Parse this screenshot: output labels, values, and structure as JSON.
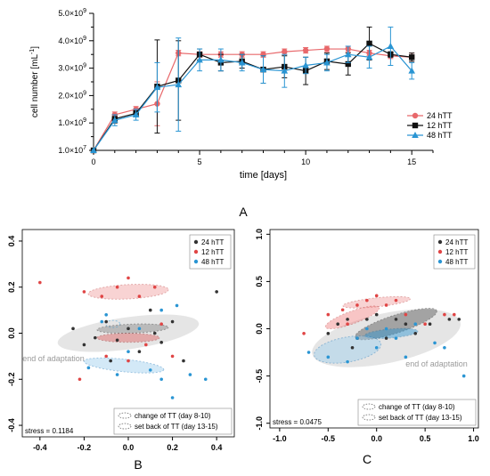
{
  "chart_data": [
    {
      "type": "line",
      "panel_label": "A",
      "xlabel": "time [days]",
      "ylabel": "cell number [mL",
      "ylabel_sup": "-1",
      "ylabel_end": "]",
      "xlim": [
        0,
        16
      ],
      "ylim": [
        0,
        5
      ],
      "xticks": [
        0,
        5,
        10,
        15
      ],
      "yticks": [
        {
          "v": 0,
          "m": "1.0×10",
          "e": "7"
        },
        {
          "v": 1,
          "m": "1.0×10",
          "e": "9"
        },
        {
          "v": 2,
          "m": "2.0×10",
          "e": "9"
        },
        {
          "v": 3,
          "m": "3.0×10",
          "e": "9"
        },
        {
          "v": 4,
          "m": "4.0×10",
          "e": "9"
        },
        {
          "v": 5,
          "m": "5.0×10",
          "e": "9"
        }
      ],
      "legend_position": "right",
      "series": [
        {
          "name": "24 hTT",
          "color": "#e8686b",
          "marker": "circle",
          "x": [
            0,
            1,
            2,
            3,
            4,
            5,
            6,
            7,
            8,
            9,
            10,
            11,
            12,
            13,
            14,
            15
          ],
          "y": [
            0.0,
            1.3,
            1.5,
            1.7,
            3.55,
            3.5,
            3.5,
            3.5,
            3.5,
            3.6,
            3.65,
            3.7,
            3.7,
            3.55,
            3.45,
            3.4
          ],
          "err": [
            0,
            0.1,
            0.1,
            0.8,
            0.1,
            0.1,
            0.1,
            0.1,
            0.1,
            0.1,
            0.1,
            0.1,
            0.1,
            0.1,
            0.1,
            0.15
          ]
        },
        {
          "name": "12 hTT",
          "color": "#111111",
          "marker": "square",
          "x": [
            0,
            1,
            2,
            3,
            4,
            5,
            6,
            7,
            8,
            9,
            10,
            11,
            12,
            13,
            14,
            15
          ],
          "y": [
            0.0,
            1.15,
            1.35,
            2.33,
            2.55,
            3.5,
            3.2,
            3.25,
            2.95,
            3.05,
            2.9,
            3.25,
            3.15,
            3.9,
            3.5,
            3.4
          ],
          "err": [
            0,
            0.15,
            0.1,
            1.7,
            1.45,
            0.2,
            0.3,
            0.25,
            0.5,
            0.4,
            0.5,
            0.3,
            0.4,
            0.6,
            0.1,
            0.15
          ]
        },
        {
          "name": "48 hTT",
          "color": "#2a95d3",
          "marker": "triangle",
          "x": [
            0,
            1,
            2,
            3,
            4,
            5,
            6,
            7,
            8,
            9,
            10,
            11,
            12,
            13,
            14,
            15
          ],
          "y": [
            0.0,
            1.1,
            1.3,
            2.3,
            2.4,
            3.3,
            3.3,
            3.2,
            2.95,
            2.9,
            3.1,
            3.2,
            3.5,
            3.4,
            3.8,
            2.9
          ],
          "err": [
            0,
            0.2,
            0.2,
            0.9,
            1.7,
            0.4,
            0.4,
            0.3,
            0.5,
            0.6,
            0.3,
            0.3,
            0.3,
            0.4,
            0.7,
            0.3
          ]
        }
      ]
    },
    {
      "type": "scatter",
      "panel_label": "B",
      "xlim": [
        -0.48,
        0.48
      ],
      "ylim": [
        -0.45,
        0.45
      ],
      "xticks": [
        "-0.4",
        "-0.2",
        "0.0",
        "0.2",
        "0.4"
      ],
      "xtick_values": [
        -0.4,
        -0.2,
        0,
        0.2,
        0.4
      ],
      "yticks": [
        "-0.4",
        "-0.2",
        "0.0",
        "0.2",
        "0.4"
      ],
      "ytick_values": [
        -0.4,
        -0.2,
        0,
        0.2,
        0.4
      ],
      "stress": "stress = 0.1184",
      "annotation": "end of adaptation",
      "legend": [
        "24 hTT",
        "12 hTT",
        "48 hTT"
      ],
      "ellipse_legend": [
        "change of TT (day 8-10)",
        "set back of TT (day 13-15)"
      ],
      "points": {
        "24 hTT": [
          [
            -0.25,
            0.02
          ],
          [
            -0.2,
            -0.05
          ],
          [
            -0.15,
            -0.02
          ],
          [
            -0.1,
            0.05
          ],
          [
            -0.05,
            -0.03
          ],
          [
            0.0,
            0.02
          ],
          [
            0.05,
            -0.08
          ],
          [
            0.1,
            0.1
          ],
          [
            0.15,
            -0.04
          ],
          [
            0.2,
            0.05
          ],
          [
            0.25,
            -0.12
          ],
          [
            0.4,
            0.18
          ],
          [
            -0.08,
            -0.12
          ],
          [
            0.12,
            0.0
          ]
        ],
        "12 hTT": [
          [
            -0.4,
            0.22
          ],
          [
            -0.2,
            0.18
          ],
          [
            -0.12,
            0.16
          ],
          [
            -0.05,
            0.2
          ],
          [
            0.0,
            0.24
          ],
          [
            0.05,
            0.16
          ],
          [
            0.12,
            0.2
          ],
          [
            -0.1,
            -0.1
          ],
          [
            0.0,
            -0.12
          ],
          [
            0.08,
            -0.05
          ],
          [
            0.15,
            0.04
          ],
          [
            0.2,
            -0.1
          ],
          [
            -0.22,
            -0.2
          ]
        ],
        "48 hTT": [
          [
            -0.18,
            -0.15
          ],
          [
            -0.12,
            0.05
          ],
          [
            -0.05,
            -0.18
          ],
          [
            0.0,
            -0.08
          ],
          [
            0.05,
            0.02
          ],
          [
            0.1,
            -0.16
          ],
          [
            0.15,
            -0.2
          ],
          [
            0.2,
            -0.28
          ],
          [
            0.22,
            0.12
          ],
          [
            0.28,
            -0.18
          ],
          [
            0.35,
            -0.2
          ],
          [
            -0.1,
            0.08
          ],
          [
            0.15,
            0.1
          ]
        ]
      }
    },
    {
      "type": "scatter",
      "panel_label": "C",
      "xlim": [
        -1.1,
        1.05
      ],
      "ylim": [
        -1.05,
        1.05
      ],
      "xticks": [
        "-1.0",
        "-0.5",
        "0.0",
        "0.5",
        "1.0"
      ],
      "xtick_values": [
        -1.0,
        -0.5,
        0,
        0.5,
        1.0
      ],
      "yticks": [
        "-1.0",
        "-0.5",
        "0.0",
        "0.5",
        "1.0"
      ],
      "ytick_values": [
        -1.0,
        -0.5,
        0,
        0.5,
        1.0
      ],
      "stress": "stress = 0.0475",
      "annotation": "end of adaptation",
      "legend": [
        "24 hTT",
        "12 hTT",
        "48 hTT"
      ],
      "ellipse_legend": [
        "change of TT (day 8-10)",
        "set back of TT (day 13-15)"
      ],
      "points": {
        "24 hTT": [
          [
            -0.5,
            -0.05
          ],
          [
            -0.4,
            0.05
          ],
          [
            -0.3,
            0.1
          ],
          [
            -0.2,
            -0.1
          ],
          [
            -0.1,
            0.1
          ],
          [
            0.0,
            0.15
          ],
          [
            0.1,
            -0.1
          ],
          [
            0.2,
            0.1
          ],
          [
            0.3,
            0.05
          ],
          [
            0.4,
            -0.05
          ],
          [
            0.55,
            0.05
          ],
          [
            0.75,
            0.1
          ],
          [
            0.85,
            0.1
          ],
          [
            -0.25,
            -0.2
          ]
        ],
        "12 hTT": [
          [
            -0.75,
            -0.05
          ],
          [
            -0.5,
            0.15
          ],
          [
            -0.35,
            0.2
          ],
          [
            -0.2,
            0.25
          ],
          [
            -0.1,
            0.3
          ],
          [
            0.0,
            0.35
          ],
          [
            0.1,
            0.25
          ],
          [
            0.2,
            0.3
          ],
          [
            0.3,
            0.15
          ],
          [
            0.5,
            0.05
          ],
          [
            0.7,
            0.15
          ],
          [
            0.8,
            0.15
          ],
          [
            -0.3,
            0.05
          ]
        ],
        "48 hTT": [
          [
            -0.7,
            -0.25
          ],
          [
            -0.5,
            -0.3
          ],
          [
            -0.3,
            -0.35
          ],
          [
            -0.2,
            -0.1
          ],
          [
            0.0,
            -0.2
          ],
          [
            0.1,
            0.0
          ],
          [
            0.2,
            -0.1
          ],
          [
            0.3,
            -0.3
          ],
          [
            0.4,
            0.05
          ],
          [
            0.6,
            -0.15
          ],
          [
            0.7,
            -0.2
          ],
          [
            0.9,
            -0.5
          ],
          [
            -0.1,
            0.0
          ]
        ]
      }
    }
  ]
}
